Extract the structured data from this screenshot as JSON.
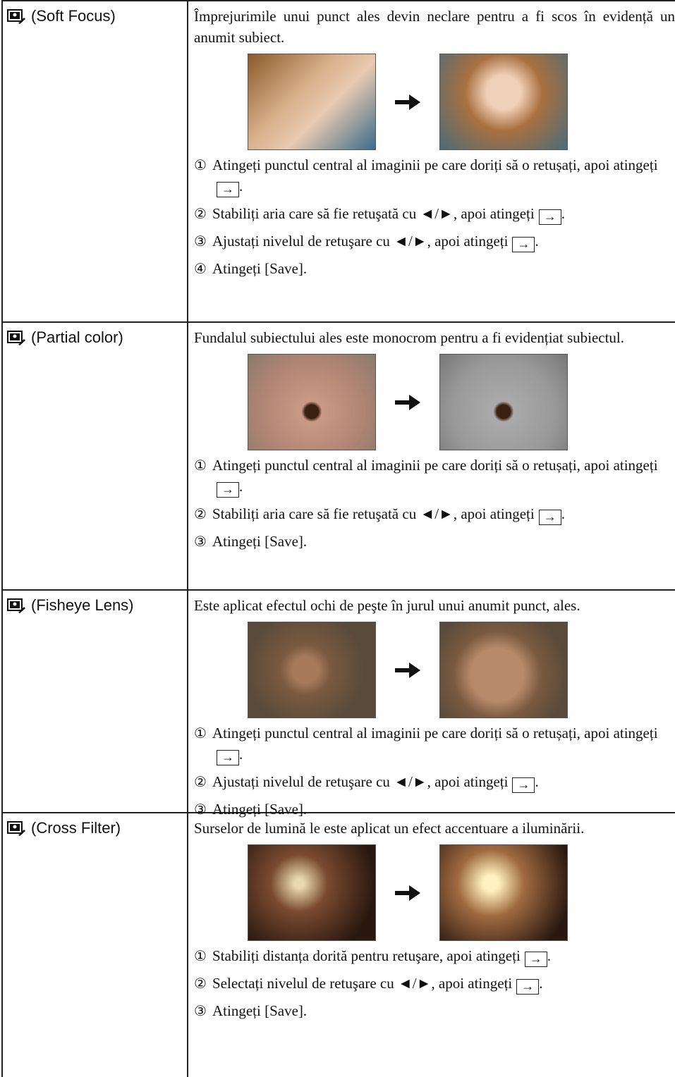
{
  "rows": [
    {
      "label": "(Soft Focus)",
      "description": "Împrejurimile unui punct ales devin neclare pentru a fi scos în evidență un anumit subiect.",
      "steps": [
        {
          "number": "①",
          "text": "Atingeți punctul central al imaginii pe care doriți să o retușați, apoi atingeți",
          "after_button": "."
        },
        {
          "number": "②",
          "text": "Stabiliți aria care să fie retuşată cu ◄/►, apoi atingeți",
          "after_button": "."
        },
        {
          "number": "③",
          "text": "Ajustați nivelul de retuşare cu ◄/►, apoi atingeți",
          "after_button": "."
        },
        {
          "number": "④",
          "text": "Atingeți [Save]."
        }
      ]
    },
    {
      "label": "(Partial color)",
      "description": "Fundalul subiectului ales este monocrom pentru a fi evidențiat subiectul.",
      "steps": [
        {
          "number": "①",
          "text": "Atingeți punctul central al imaginii pe care doriți să o retușați, apoi atingeți",
          "after_button": "."
        },
        {
          "number": "②",
          "text": "Stabiliți aria care să fie retuşată cu ◄/►, apoi atingeți",
          "after_button": "."
        },
        {
          "number": "③",
          "text": "Atingeți [Save]."
        }
      ]
    },
    {
      "label": "(Fisheye Lens)",
      "description": "Este aplicat efectul ochi de peşte în jurul unui anumit punct, ales.",
      "steps": [
        {
          "number": "①",
          "text": "Atingeți punctul central al imaginii pe care doriți să o retușați, apoi atingeți",
          "after_button": "."
        },
        {
          "number": "②",
          "text": "Ajustați nivelul de retuşare cu ◄/►, apoi atingeți",
          "after_button": "."
        },
        {
          "number": "③",
          "text": "Atingeți [Save]."
        }
      ]
    },
    {
      "label": "(Cross Filter)",
      "description": "Surselor de lumină le este aplicat un efect accentuare a iluminării.",
      "steps": [
        {
          "number": "①",
          "text": "Stabiliți distanța dorită pentru retuşare, apoi atingeți",
          "after_button": "."
        },
        {
          "number": "②",
          "text": "Selectați nivelul de retuşare cu ◄/►, apoi atingeți",
          "after_button": "."
        },
        {
          "number": "③",
          "text": "Atingeți [Save]."
        }
      ]
    }
  ]
}
